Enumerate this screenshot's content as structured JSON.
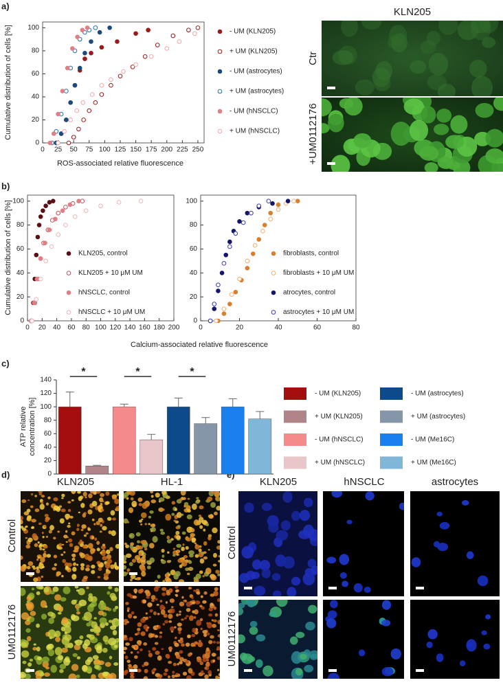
{
  "labels": [
    "a)",
    "b)",
    "c)",
    "d)",
    "e)"
  ],
  "images": {
    "a": {
      "title": "KLN205",
      "rows": [
        "Ctr",
        "+UM0112176"
      ]
    },
    "d": {
      "columns": [
        "KLN205",
        "HL-1"
      ],
      "rows": [
        "Control",
        "UM0112176"
      ]
    },
    "e": {
      "columns": [
        "KLN205",
        "hNSCLC",
        "astrocytes"
      ],
      "rows": [
        "Control",
        "UM0112176"
      ]
    }
  },
  "chart_data": [
    {
      "type": "scatter",
      "xlabel": "ROS-associated relative fluorescence",
      "ylabel": "Cumulative distribution of cells [%]",
      "xlim": [
        0,
        260
      ],
      "xticks": [
        0,
        25,
        50,
        75,
        100,
        125,
        150,
        175,
        200,
        225,
        250
      ],
      "ylim": [
        0,
        105
      ],
      "yticks": [
        0,
        20,
        40,
        60,
        80,
        100
      ],
      "series": [
        {
          "name": "- UM (KLN205)",
          "color": "#9b1b1b",
          "filled": true,
          "x": [
            22,
            30,
            38,
            45,
            52,
            60,
            68,
            78,
            95,
            120,
            150,
            170
          ],
          "values": [
            0,
            8,
            20,
            35,
            50,
            63,
            73,
            78,
            83,
            88,
            95,
            98
          ]
        },
        {
          "name": "+ UM (KLN205)",
          "color": "#9b1b1b",
          "filled": false,
          "x": [
            42,
            50,
            58,
            66,
            75,
            85,
            95,
            110,
            125,
            145,
            165,
            185,
            210,
            235,
            250
          ],
          "values": [
            0,
            5,
            12,
            20,
            28,
            35,
            42,
            50,
            58,
            66,
            75,
            85,
            93,
            98,
            100
          ]
        },
        {
          "name": "- UM (astrocytes)",
          "color": "#1a4a7e",
          "filled": true,
          "x": [
            22,
            30,
            38,
            45,
            52,
            60,
            68,
            78,
            92,
            108
          ],
          "values": [
            0,
            8,
            20,
            35,
            50,
            65,
            78,
            88,
            96,
            100
          ]
        },
        {
          "name": "+ UM (astrocytes)",
          "color": "#1f6fb0",
          "filled": false,
          "x": [
            15,
            22,
            30,
            38,
            45,
            52,
            60,
            68,
            75,
            85
          ],
          "values": [
            0,
            10,
            25,
            45,
            65,
            80,
            90,
            96,
            98,
            100
          ]
        },
        {
          "name": "- UM (hNSCLC)",
          "color": "#e07f86",
          "filled": true,
          "x": [
            12,
            18,
            25,
            32,
            40,
            48,
            56,
            64,
            72
          ],
          "values": [
            0,
            8,
            25,
            45,
            65,
            82,
            92,
            98,
            100
          ]
        },
        {
          "name": "+ UM (hNSCLC)",
          "color": "#f2a6ad",
          "filled": false,
          "x": [
            25,
            35,
            45,
            55,
            65,
            80,
            95,
            110,
            130,
            150,
            175,
            200,
            220,
            245
          ],
          "values": [
            0,
            10,
            20,
            28,
            35,
            42,
            50,
            55,
            62,
            68,
            75,
            82,
            88,
            95
          ]
        }
      ]
    },
    {
      "type": "scatter",
      "xlabel": "Calcium-associated relative fluorescence",
      "ylabel": "Cumulative distribution of cells [%]",
      "xlim": [
        0,
        200
      ],
      "xticks": [
        0,
        20,
        40,
        60,
        80,
        100,
        120,
        140,
        160,
        180,
        200
      ],
      "ylim": [
        0,
        105
      ],
      "yticks": [
        0,
        20,
        40,
        60,
        80,
        100
      ],
      "series": [
        {
          "name": "KLN205, control",
          "color": "#5a0f16",
          "filled": true,
          "x": [
            5,
            8,
            10,
            12,
            14,
            16,
            18,
            21,
            25,
            30,
            35
          ],
          "values": [
            0,
            15,
            35,
            55,
            70,
            80,
            87,
            92,
            96,
            99,
            100
          ]
        },
        {
          "name": "KLN205 + 10 μM UM",
          "color": "#c0505a",
          "filled": false,
          "x": [
            6,
            10,
            14,
            18,
            22,
            28,
            34,
            42,
            52,
            62,
            75
          ],
          "values": [
            0,
            15,
            35,
            52,
            65,
            76,
            84,
            90,
            95,
            98,
            100
          ]
        },
        {
          "name": "hNSCLC, control",
          "color": "#e07f86",
          "filled": true,
          "x": [
            5,
            9,
            13,
            18,
            24,
            30,
            38,
            48,
            58,
            70
          ],
          "values": [
            0,
            15,
            35,
            52,
            65,
            76,
            85,
            92,
            97,
            100
          ]
        },
        {
          "name": "hNSCLC + 10 μM UM",
          "color": "#f2b4b8",
          "filled": false,
          "x": [
            6,
            12,
            18,
            25,
            33,
            42,
            52,
            65,
            80,
            100,
            125,
            155
          ],
          "values": [
            0,
            18,
            35,
            50,
            62,
            72,
            80,
            87,
            92,
            96,
            99,
            100
          ]
        }
      ]
    },
    {
      "type": "scatter",
      "xlim": [
        0,
        80
      ],
      "xticks": [
        0,
        20,
        40,
        60,
        80
      ],
      "ylim": [
        0,
        105
      ],
      "yticks": [
        0,
        20,
        40,
        60,
        80,
        100
      ],
      "series": [
        {
          "name": "fibroblasts, control",
          "color": "#d98030",
          "filled": true,
          "x": [
            9,
            12,
            15,
            18,
            21,
            24,
            27,
            30,
            33,
            36,
            40,
            50
          ],
          "values": [
            0,
            6,
            14,
            24,
            34,
            44,
            56,
            68,
            80,
            90,
            97,
            100
          ]
        },
        {
          "name": "fibroblasts + 10 μM UM",
          "color": "#f0b070",
          "filled": false,
          "x": [
            8,
            12,
            16,
            20,
            24,
            28,
            32,
            36,
            40,
            44,
            48
          ],
          "values": [
            0,
            10,
            22,
            35,
            50,
            63,
            75,
            85,
            93,
            98,
            100
          ]
        },
        {
          "name": "atrocytes, control",
          "color": "#15166b",
          "filled": true,
          "x": [
            5,
            7,
            9,
            11,
            13,
            15,
            17,
            20,
            24,
            30,
            37,
            45
          ],
          "values": [
            0,
            10,
            25,
            40,
            55,
            66,
            75,
            83,
            90,
            95,
            98,
            100
          ]
        },
        {
          "name": "astrocytes + 10 μM UM",
          "color": "#3a3ab0",
          "filled": false,
          "x": [
            5,
            7,
            9,
            12,
            15,
            18,
            22,
            26,
            30,
            35
          ],
          "values": [
            0,
            14,
            30,
            48,
            62,
            73,
            82,
            90,
            96,
            100
          ]
        }
      ]
    },
    {
      "type": "bar",
      "ylabel": [
        "ATP relative",
        "concentration [%]"
      ],
      "ylim": [
        0,
        140
      ],
      "yticks": [
        0,
        20,
        40,
        60,
        80,
        100,
        120,
        140
      ],
      "annotations": [
        "*",
        "*",
        "*"
      ],
      "series": [
        {
          "name": "- UM (KLN205)",
          "color": "#a50e0e",
          "values": [
            100
          ],
          "errors": [
            22
          ]
        },
        {
          "name": "+ UM (KLN205)",
          "color": "#b08488",
          "values": [
            12
          ],
          "errors": [
            1
          ]
        },
        {
          "name": "- UM (hNSCLC)",
          "color": "#f58a8a",
          "values": [
            100
          ],
          "errors": [
            4
          ]
        },
        {
          "name": "+ UM (hNSCLC)",
          "color": "#e9c6ca",
          "values": [
            51
          ],
          "errors": [
            8
          ]
        },
        {
          "name": "- UM (astrocytes)",
          "color": "#0d4a8a",
          "values": [
            100
          ],
          "errors": [
            13
          ]
        },
        {
          "name": "+ UM (astrocytes)",
          "color": "#8496a8",
          "values": [
            75
          ],
          "errors": [
            9
          ]
        },
        {
          "name": "- UM (Me16C)",
          "color": "#1a80ee",
          "values": [
            100
          ],
          "errors": [
            12
          ]
        },
        {
          "name": "+ UM (Me16C)",
          "color": "#80b6d8",
          "values": [
            82
          ],
          "errors": [
            11
          ]
        }
      ]
    }
  ]
}
